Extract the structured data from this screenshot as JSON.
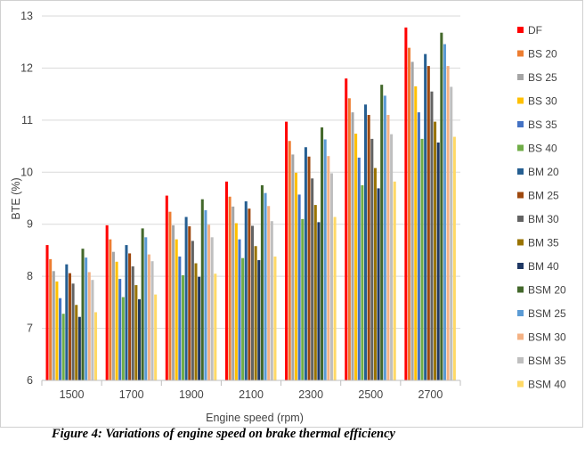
{
  "figure": {
    "caption": "Figure 4: Variations of engine speed on brake thermal efficiency"
  },
  "chart_data": {
    "type": "bar",
    "xlabel": "Engine speed (rpm)",
    "ylabel": "BTE (%)",
    "ylim": [
      6,
      13
    ],
    "yticks": [
      6,
      7,
      8,
      9,
      10,
      11,
      12,
      13
    ],
    "grid": true,
    "legend_position": "right",
    "categories": [
      "1500",
      "1700",
      "1900",
      "2100",
      "2300",
      "2500",
      "2700"
    ],
    "series": [
      {
        "name": "DF",
        "color": "#ff0000",
        "values": [
          8.6,
          8.98,
          9.55,
          9.82,
          10.97,
          11.8,
          12.78
        ]
      },
      {
        "name": "BS 20",
        "color": "#ed7d31",
        "values": [
          8.33,
          8.71,
          9.24,
          9.53,
          10.6,
          11.42,
          12.39
        ]
      },
      {
        "name": "BS 25",
        "color": "#a5a5a5",
        "values": [
          8.1,
          8.47,
          8.98,
          9.34,
          10.34,
          11.15,
          12.12
        ]
      },
      {
        "name": "BS 30",
        "color": "#ffc000",
        "values": [
          7.9,
          8.28,
          8.71,
          9.02,
          9.99,
          10.74,
          11.65
        ]
      },
      {
        "name": "BS 35",
        "color": "#4472c4",
        "values": [
          7.58,
          7.95,
          8.38,
          8.71,
          9.57,
          10.28,
          11.15
        ]
      },
      {
        "name": "BS 40",
        "color": "#70ad47",
        "values": [
          7.28,
          7.6,
          8.02,
          8.35,
          9.1,
          9.75,
          10.64
        ]
      },
      {
        "name": "BM 20",
        "color": "#255e91",
        "values": [
          8.23,
          8.6,
          9.14,
          9.44,
          10.48,
          11.3,
          12.27
        ]
      },
      {
        "name": "BM 25",
        "color": "#9e480e",
        "values": [
          8.06,
          8.44,
          8.96,
          9.3,
          10.3,
          11.1,
          12.04
        ]
      },
      {
        "name": "BM 30",
        "color": "#636363",
        "values": [
          7.86,
          8.19,
          8.68,
          8.97,
          9.88,
          10.64,
          11.55
        ]
      },
      {
        "name": "BM 35",
        "color": "#997300",
        "values": [
          7.45,
          7.83,
          8.25,
          8.58,
          9.37,
          10.08,
          10.97
        ]
      },
      {
        "name": "BM 40",
        "color": "#1f3864",
        "values": [
          7.22,
          7.56,
          7.99,
          8.31,
          9.04,
          9.69,
          10.57
        ]
      },
      {
        "name": "BSM 20",
        "color": "#43682b",
        "values": [
          8.53,
          8.92,
          9.48,
          9.75,
          10.86,
          11.68,
          12.68
        ]
      },
      {
        "name": "BSM 25",
        "color": "#5b9bd5",
        "values": [
          8.36,
          8.75,
          9.27,
          9.6,
          10.63,
          11.47,
          12.46
        ]
      },
      {
        "name": "BSM 30",
        "color": "#f4b183",
        "values": [
          8.08,
          8.42,
          8.99,
          9.35,
          10.31,
          11.1,
          12.04
        ]
      },
      {
        "name": "BSM 35",
        "color": "#bfbfbf",
        "values": [
          7.93,
          8.29,
          8.75,
          9.06,
          9.98,
          10.73,
          11.64
        ]
      },
      {
        "name": "BSM 40",
        "color": "#ffd966",
        "values": [
          7.31,
          7.65,
          8.05,
          8.38,
          9.14,
          9.82,
          10.68
        ]
      }
    ]
  }
}
